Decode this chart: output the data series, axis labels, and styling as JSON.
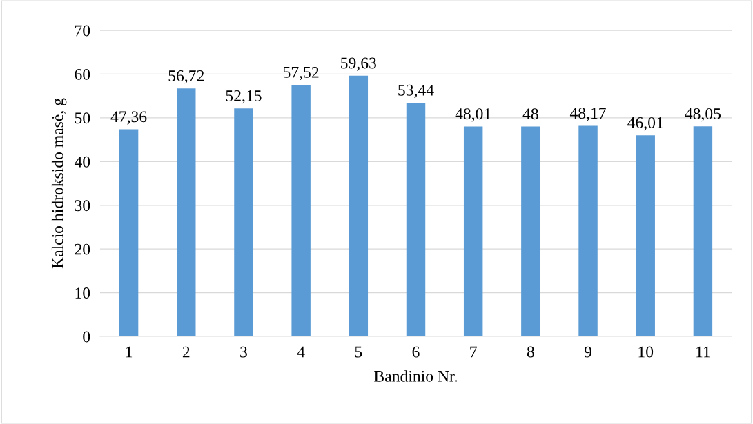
{
  "chart_data": {
    "type": "bar",
    "xlabel": "Bandinio Nr.",
    "ylabel": "Kalcio hidroksido masė, g",
    "categories": [
      "1",
      "2",
      "3",
      "4",
      "5",
      "6",
      "7",
      "8",
      "9",
      "10",
      "11"
    ],
    "values": [
      47.36,
      56.72,
      52.15,
      57.52,
      59.63,
      53.44,
      48.01,
      48,
      48.17,
      46.01,
      48.05
    ],
    "value_labels": [
      "47,36",
      "56,72",
      "52,15",
      "57,52",
      "59,63",
      "53,44",
      "48,01",
      "48",
      "48,17",
      "46,01",
      "48,05"
    ],
    "color": "#5b9bd5",
    "ylim": [
      0,
      70
    ],
    "yticks": [
      0,
      10,
      20,
      30,
      40,
      50,
      60,
      70
    ],
    "grid": "y",
    "legend": false
  }
}
